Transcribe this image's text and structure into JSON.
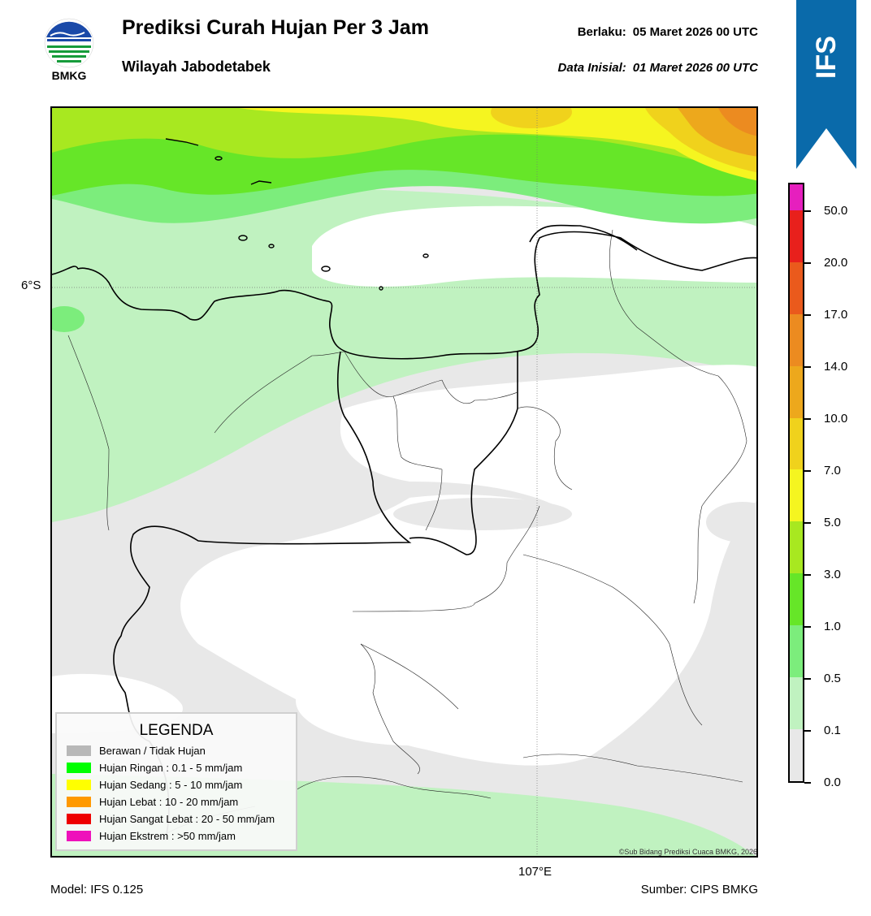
{
  "header": {
    "title": "Prediksi Curah Hujan Per 3 Jam",
    "subtitle": "Wilayah Jabodetabek",
    "valid_label": "Berlaku:",
    "valid_value": "05 Maret 2026 00 UTC",
    "init_label": "Data Inisial:",
    "init_value": "01 Maret 2026 00 UTC"
  },
  "logo": {
    "text": "BMKG",
    "icon": "bmkg-logo-icon"
  },
  "map": {
    "lat_label": "6°S",
    "lon_label": "107°E",
    "copyright": "©Sub Bidang Prediksi Cuaca BMKG, 2026"
  },
  "legend": {
    "title": "LEGENDA",
    "items": [
      {
        "label": "Berawan / Tidak Hujan",
        "color": "#b8b8b8"
      },
      {
        "label": "Hujan Ringan : 0.1 - 5 mm/jam",
        "color": "#00ff00"
      },
      {
        "label": "Hujan Sedang : 5 - 10 mm/jam",
        "color": "#ffff00"
      },
      {
        "label": "Hujan Lebat : 10 - 20 mm/jam",
        "color": "#ff9900"
      },
      {
        "label": "Hujan Sangat Lebat : 20 - 50 mm/jam",
        "color": "#ee0000"
      },
      {
        "label": "Hujan Ekstrem : >50 mm/jam",
        "color": "#ee11bb"
      }
    ]
  },
  "colorbar": {
    "ticks": [
      "0.0",
      "0.1",
      "0.5",
      "1.0",
      "3.0",
      "5.0",
      "7.0",
      "10.0",
      "14.0",
      "17.0",
      "20.0",
      "50.0"
    ],
    "colors_top_to_bottom": [
      "#e61fbe",
      "#e8201c",
      "#ea5a1c",
      "#ec8b20",
      "#eda81c",
      "#f0d21c",
      "#f5f520",
      "#a8e820",
      "#66e628",
      "#7ced7c",
      "#c0f2c0",
      "#e8e8e8"
    ]
  },
  "badge": {
    "text": "IFS",
    "color": "#0a6aaa"
  },
  "footer": {
    "model": "Model: IFS 0.125",
    "source": "Sumber: CIPS BMKG"
  }
}
